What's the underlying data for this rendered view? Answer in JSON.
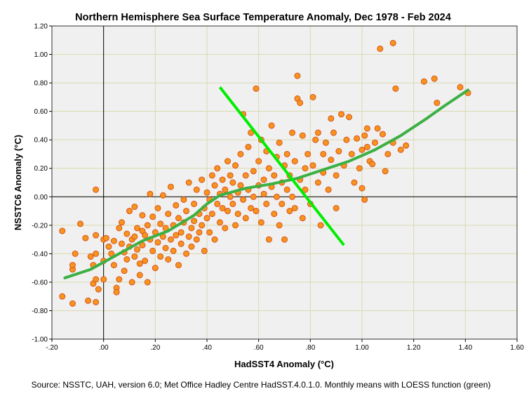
{
  "chart_data": {
    "type": "scatter",
    "title": "Northern Hemisphere Sea Surface Temperature Anomaly, Dec 1978 - Feb 2024",
    "xlabel": "HadSST4 Anomaly (°C)",
    "ylabel": "NSSTC6 Anomaly (°C)",
    "source": "Source: NSSTC, UAH, version 6.0; Met Office Hadley Centre HadSST.4.0.1.0. Monthly means with LOESS function (green)",
    "xlim": [
      -0.2,
      1.6
    ],
    "ylim": [
      -1.0,
      1.2
    ],
    "x_ticks": [
      -0.2,
      0.0,
      0.2,
      0.4,
      0.6,
      0.8,
      1.0,
      1.2,
      1.4,
      1.6
    ],
    "x_tick_labels": [
      "-.20",
      ".00",
      ".20",
      ".40",
      ".60",
      ".80",
      "1.00",
      "1.20",
      "1.40",
      "1.60"
    ],
    "y_ticks": [
      -1.0,
      -0.8,
      -0.6,
      -0.4,
      -0.2,
      0.0,
      0.2,
      0.4,
      0.6,
      0.8,
      1.0,
      1.2
    ],
    "y_tick_labels": [
      "-1.00",
      "-0.80",
      "-0.60",
      "-0.40",
      "-0.20",
      "0.00",
      "0.20",
      "0.40",
      "0.60",
      "0.80",
      "1.00",
      "1.20"
    ],
    "grid": true,
    "colors": {
      "background": "#f0f0f0",
      "grid": "#dadab0",
      "marker_fill": "#f7941d",
      "marker_edge": "#d9541e",
      "loess": "#3cb043",
      "cross_line": "#00ee00",
      "zero_lines": "#000000"
    },
    "loess_curve": [
      [
        -0.15,
        -0.57
      ],
      [
        -0.05,
        -0.51
      ],
      [
        0.05,
        -0.41
      ],
      [
        0.15,
        -0.31
      ],
      [
        0.25,
        -0.24
      ],
      [
        0.35,
        -0.13
      ],
      [
        0.4,
        -0.05
      ],
      [
        0.45,
        0.01
      ],
      [
        0.55,
        0.06
      ],
      [
        0.65,
        0.09
      ],
      [
        0.75,
        0.13
      ],
      [
        0.85,
        0.19
      ],
      [
        0.95,
        0.25
      ],
      [
        1.05,
        0.33
      ],
      [
        1.15,
        0.43
      ],
      [
        1.25,
        0.55
      ],
      [
        1.32,
        0.64
      ],
      [
        1.41,
        0.75
      ]
    ],
    "cross_line": [
      [
        0.45,
        0.77
      ],
      [
        0.93,
        -0.34
      ]
    ],
    "points": [
      [
        -0.16,
        -0.24
      ],
      [
        -0.16,
        -0.7
      ],
      [
        -0.12,
        -0.75
      ],
      [
        -0.11,
        -0.4
      ],
      [
        -0.12,
        -0.51
      ],
      [
        -0.12,
        -0.48
      ],
      [
        -0.09,
        -0.19
      ],
      [
        -0.07,
        -0.29
      ],
      [
        -0.06,
        -0.73
      ],
      [
        -0.05,
        -0.42
      ],
      [
        -0.04,
        -0.61
      ],
      [
        -0.04,
        -0.48
      ],
      [
        -0.03,
        -0.58
      ],
      [
        -0.03,
        -0.74
      ],
      [
        -0.03,
        -0.4
      ],
      [
        -0.03,
        0.05
      ],
      [
        -0.03,
        -0.27
      ],
      [
        -0.02,
        -0.65
      ],
      [
        0.0,
        -0.3
      ],
      [
        0.0,
        -0.45
      ],
      [
        0.0,
        -0.58
      ],
      [
        0.01,
        -0.29
      ],
      [
        0.02,
        -0.35
      ],
      [
        0.03,
        -0.4
      ],
      [
        0.04,
        -0.31
      ],
      [
        0.04,
        -0.48
      ],
      [
        0.05,
        -0.64
      ],
      [
        0.05,
        -0.67
      ],
      [
        0.06,
        -0.22
      ],
      [
        0.06,
        -0.58
      ],
      [
        0.07,
        -0.33
      ],
      [
        0.07,
        -0.18
      ],
      [
        0.08,
        -0.39
      ],
      [
        0.08,
        -0.52
      ],
      [
        0.09,
        -0.26
      ],
      [
        0.09,
        -0.44
      ],
      [
        0.1,
        -0.35
      ],
      [
        0.1,
        -0.1
      ],
      [
        0.11,
        -0.3
      ],
      [
        0.11,
        -0.6
      ],
      [
        0.12,
        -0.28
      ],
      [
        0.12,
        -0.42
      ],
      [
        0.12,
        -0.07
      ],
      [
        0.13,
        -0.22
      ],
      [
        0.13,
        -0.37
      ],
      [
        0.14,
        -0.55
      ],
      [
        0.14,
        -0.47
      ],
      [
        0.15,
        -0.24
      ],
      [
        0.15,
        -0.34
      ],
      [
        0.15,
        -0.13
      ],
      [
        0.16,
        -0.27
      ],
      [
        0.16,
        -0.45
      ],
      [
        0.17,
        -0.6
      ],
      [
        0.17,
        -0.2
      ],
      [
        0.18,
        -0.3
      ],
      [
        0.18,
        0.02
      ],
      [
        0.19,
        -0.38
      ],
      [
        0.19,
        -0.14
      ],
      [
        0.2,
        -0.25
      ],
      [
        0.2,
        -0.5
      ],
      [
        0.21,
        -0.32
      ],
      [
        0.21,
        -0.08
      ],
      [
        0.22,
        -0.42
      ],
      [
        0.22,
        -0.19
      ],
      [
        0.23,
        -0.28
      ],
      [
        0.23,
        0.01
      ],
      [
        0.24,
        -0.36
      ],
      [
        0.24,
        -0.22
      ],
      [
        0.25,
        -0.12
      ],
      [
        0.25,
        -0.44
      ],
      [
        0.26,
        -0.3
      ],
      [
        0.26,
        0.07
      ],
      [
        0.27,
        -0.2
      ],
      [
        0.27,
        -0.38
      ],
      [
        0.28,
        -0.06
      ],
      [
        0.28,
        -0.27
      ],
      [
        0.29,
        -0.15
      ],
      [
        0.29,
        -0.48
      ],
      [
        0.3,
        -0.25
      ],
      [
        0.3,
        -0.33
      ],
      [
        0.31,
        -0.02
      ],
      [
        0.31,
        -0.18
      ],
      [
        0.32,
        -0.4
      ],
      [
        0.32,
        -0.1
      ],
      [
        0.33,
        -0.28
      ],
      [
        0.33,
        0.1
      ],
      [
        0.34,
        -0.22
      ],
      [
        0.34,
        -0.35
      ],
      [
        0.35,
        -0.05
      ],
      [
        0.35,
        -0.17
      ],
      [
        0.36,
        -0.3
      ],
      [
        0.36,
        0.05
      ],
      [
        0.37,
        -0.12
      ],
      [
        0.37,
        -0.25
      ],
      [
        0.38,
        -0.2
      ],
      [
        0.38,
        0.12
      ],
      [
        0.39,
        -0.08
      ],
      [
        0.39,
        -0.38
      ],
      [
        0.4,
        -0.15
      ],
      [
        0.4,
        0.03
      ],
      [
        0.41,
        -0.25
      ],
      [
        0.41,
        -0.02
      ],
      [
        0.42,
        0.15
      ],
      [
        0.42,
        -0.12
      ],
      [
        0.43,
        -0.3
      ],
      [
        0.43,
        0.08
      ],
      [
        0.44,
        -0.05
      ],
      [
        0.44,
        0.2
      ],
      [
        0.45,
        -0.18
      ],
      [
        0.45,
        0.02
      ],
      [
        0.46,
        0.12
      ],
      [
        0.46,
        -0.08
      ],
      [
        0.47,
        -0.22
      ],
      [
        0.47,
        0.05
      ],
      [
        0.48,
        0.25
      ],
      [
        0.48,
        -0.1
      ],
      [
        0.49,
        0.0
      ],
      [
        0.49,
        0.15
      ],
      [
        0.5,
        -0.05
      ],
      [
        0.5,
        0.1
      ],
      [
        0.51,
        -0.2
      ],
      [
        0.51,
        0.22
      ],
      [
        0.52,
        0.03
      ],
      [
        0.52,
        -0.12
      ],
      [
        0.53,
        0.3
      ],
      [
        0.53,
        0.08
      ],
      [
        0.54,
        -0.02
      ],
      [
        0.54,
        0.58
      ],
      [
        0.55,
        0.15
      ],
      [
        0.55,
        -0.15
      ],
      [
        0.56,
        0.05
      ],
      [
        0.56,
        0.35
      ],
      [
        0.57,
        -0.08
      ],
      [
        0.57,
        0.45
      ],
      [
        0.58,
        0.18
      ],
      [
        0.58,
        0.0
      ],
      [
        0.59,
        0.76
      ],
      [
        0.59,
        -0.1
      ],
      [
        0.6,
        0.25
      ],
      [
        0.6,
        0.08
      ],
      [
        0.61,
        -0.18
      ],
      [
        0.61,
        0.4
      ],
      [
        0.62,
        0.02
      ],
      [
        0.62,
        0.12
      ],
      [
        0.63,
        0.32
      ],
      [
        0.63,
        -0.05
      ],
      [
        0.64,
        0.2
      ],
      [
        0.64,
        -0.3
      ],
      [
        0.65,
        0.07
      ],
      [
        0.65,
        0.5
      ],
      [
        0.66,
        -0.12
      ],
      [
        0.66,
        0.15
      ],
      [
        0.67,
        0.28
      ],
      [
        0.67,
        0.0
      ],
      [
        0.68,
        -0.2
      ],
      [
        0.68,
        0.38
      ],
      [
        0.69,
        0.1
      ],
      [
        0.69,
        -0.05
      ],
      [
        0.7,
        0.22
      ],
      [
        0.7,
        -0.3
      ],
      [
        0.71,
        0.05
      ],
      [
        0.71,
        0.3
      ],
      [
        0.72,
        -0.1
      ],
      [
        0.72,
        0.15
      ],
      [
        0.73,
        0.45
      ],
      [
        0.73,
        0.0
      ],
      [
        0.74,
        0.25
      ],
      [
        0.74,
        -0.08
      ],
      [
        0.75,
        0.85
      ],
      [
        0.75,
        0.69
      ],
      [
        0.76,
        0.12
      ],
      [
        0.76,
        0.66
      ],
      [
        0.77,
        0.43
      ],
      [
        0.77,
        -0.15
      ],
      [
        0.78,
        0.2
      ],
      [
        0.78,
        0.05
      ],
      [
        0.79,
        0.3
      ],
      [
        0.8,
        -0.05
      ],
      [
        0.81,
        0.22
      ],
      [
        0.81,
        0.7
      ],
      [
        0.82,
        0.4
      ],
      [
        0.83,
        0.1
      ],
      [
        0.83,
        0.45
      ],
      [
        0.84,
        -0.2
      ],
      [
        0.85,
        0.3
      ],
      [
        0.85,
        0.17
      ],
      [
        0.86,
        0.38
      ],
      [
        0.87,
        0.05
      ],
      [
        0.88,
        0.55
      ],
      [
        0.88,
        0.26
      ],
      [
        0.89,
        0.45
      ],
      [
        0.9,
        0.15
      ],
      [
        0.9,
        -0.08
      ],
      [
        0.91,
        0.32
      ],
      [
        0.92,
        0.58
      ],
      [
        0.93,
        0.22
      ],
      [
        0.94,
        0.4
      ],
      [
        0.95,
        0.56
      ],
      [
        0.96,
        0.3
      ],
      [
        0.97,
        0.1
      ],
      [
        0.98,
        0.41
      ],
      [
        0.99,
        0.2
      ],
      [
        1.0,
        0.33
      ],
      [
        1.0,
        0.06
      ],
      [
        1.01,
        0.43
      ],
      [
        1.01,
        -0.02
      ],
      [
        1.02,
        0.48
      ],
      [
        1.02,
        0.35
      ],
      [
        1.03,
        0.25
      ],
      [
        1.04,
        0.23
      ],
      [
        1.05,
        0.38
      ],
      [
        1.06,
        0.48
      ],
      [
        1.07,
        1.04
      ],
      [
        1.08,
        0.44
      ],
      [
        1.09,
        0.18
      ],
      [
        1.1,
        0.3
      ],
      [
        1.12,
        1.08
      ],
      [
        1.12,
        0.38
      ],
      [
        1.13,
        0.76
      ],
      [
        1.15,
        0.33
      ],
      [
        1.17,
        0.36
      ],
      [
        1.24,
        0.81
      ],
      [
        1.28,
        0.83
      ],
      [
        1.29,
        0.66
      ],
      [
        1.38,
        0.77
      ],
      [
        1.41,
        0.73
      ]
    ]
  }
}
